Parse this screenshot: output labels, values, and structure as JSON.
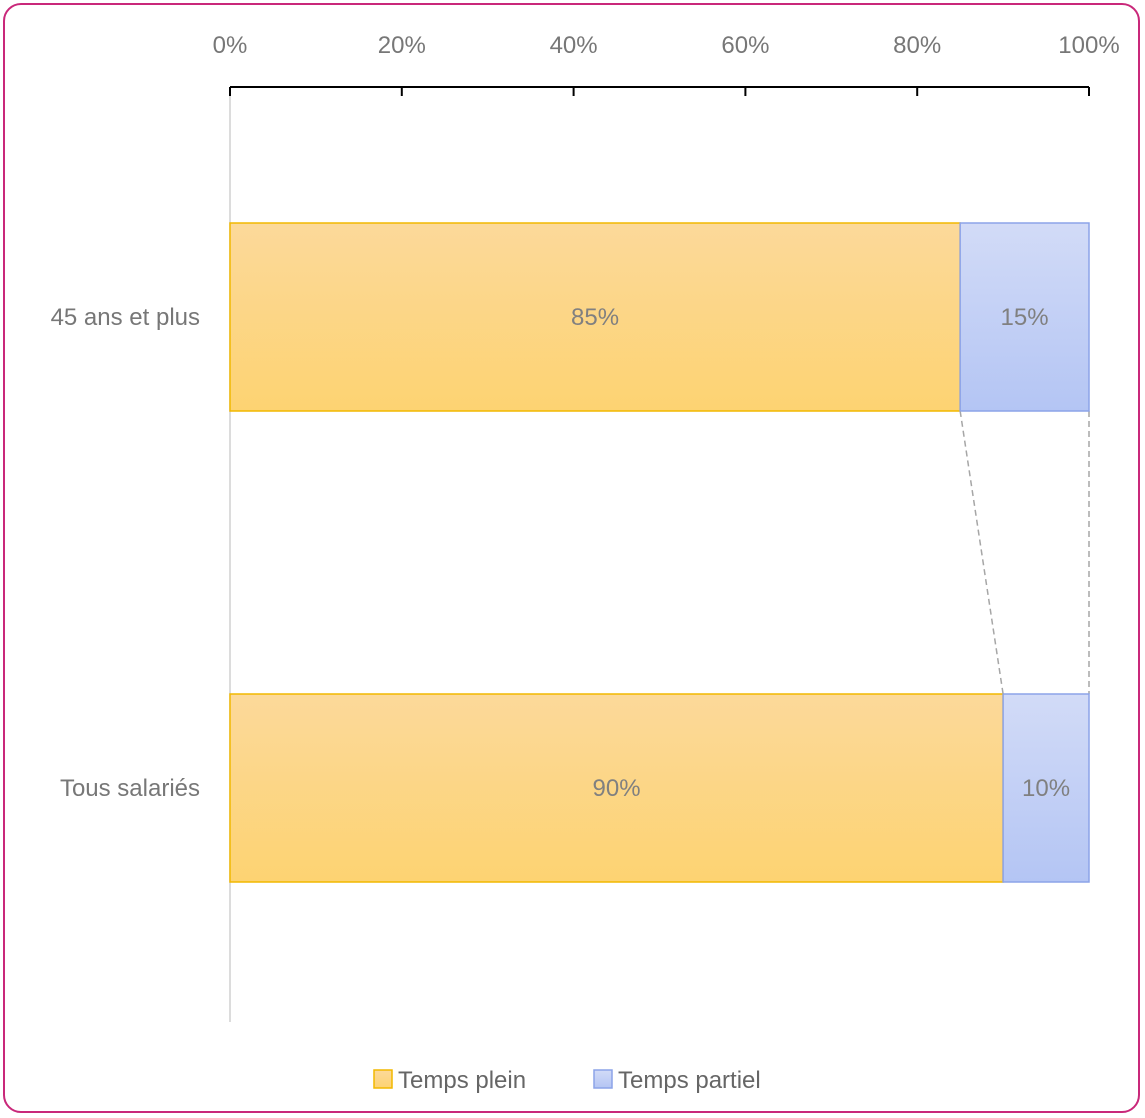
{
  "chart_data": {
    "type": "bar",
    "orientation": "horizontal",
    "stacked": true,
    "x_axis_position": "top",
    "categories": [
      "45 ans et plus",
      "Tous salariés"
    ],
    "series": [
      {
        "name": "Temps plein",
        "values": [
          85,
          90
        ],
        "labels": [
          "85%",
          "90%"
        ]
      },
      {
        "name": "Temps partiel",
        "values": [
          15,
          10
        ],
        "labels": [
          "15%",
          "10%"
        ]
      }
    ],
    "xlim": [
      0,
      100
    ],
    "xticks": [
      "0%",
      "20%",
      "40%",
      "60%",
      "80%",
      "100%"
    ],
    "legend": "bottom",
    "series_lines": true,
    "grid": false
  },
  "colors": {
    "border": "#c9287a",
    "temps_plein_top": "#fcd99a",
    "temps_plein_bottom": "#fdd372",
    "temps_plein_edge": "#f2b800",
    "temps_partiel_top": "#d2dbf7",
    "temps_partiel_bottom": "#b4c5f4",
    "temps_partiel_edge": "#8ca3e8"
  }
}
